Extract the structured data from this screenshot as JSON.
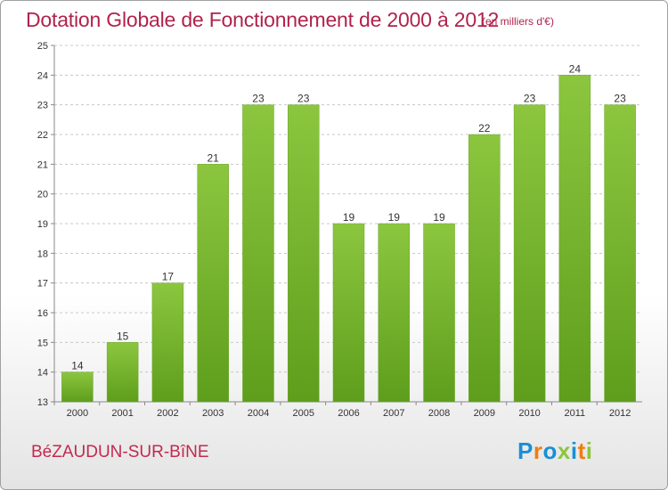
{
  "chart_data": {
    "type": "bar",
    "title": "Dotation Globale de Fonctionnement de 2000 à 2012",
    "subtitle": "(en milliers d'€)",
    "categories": [
      "2000",
      "2001",
      "2002",
      "2003",
      "2004",
      "2005",
      "2006",
      "2007",
      "2008",
      "2009",
      "2010",
      "2011",
      "2012"
    ],
    "values": [
      14,
      15,
      17,
      21,
      23,
      23,
      19,
      19,
      19,
      22,
      23,
      24,
      23
    ],
    "value_labels": [
      "14",
      "15",
      "17",
      "21",
      "23",
      "23",
      "19",
      "19",
      "19",
      "22",
      "23",
      "24",
      "23"
    ],
    "ylim": [
      13,
      25
    ],
    "yticks": [
      "13",
      "14",
      "15",
      "16",
      "17",
      "18",
      "19",
      "20",
      "21",
      "22",
      "23",
      "24",
      "25"
    ],
    "grid": "horizontal dashed",
    "bar_color": "#8cc63f",
    "bar_color_dark": "#5e9e1c"
  },
  "footer": {
    "commune": "BéZAUDUN-SUR-BîNE",
    "logo": [
      "P",
      "r",
      "o",
      "x",
      "i",
      "t",
      "i"
    ]
  },
  "colors": {
    "title": "#b0234d",
    "logo": [
      "#1a8fd6",
      "#ef7d11",
      "#1a8fd6",
      "#8cc63f",
      "#1a8fd6",
      "#ef7d11",
      "#8cc63f"
    ]
  }
}
